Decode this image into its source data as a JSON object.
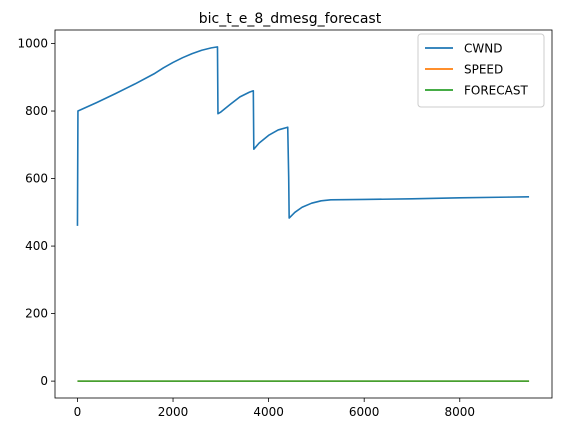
{
  "chart_data": {
    "type": "line",
    "title": "bic_t_e_8_dmesg_forecast",
    "xlabel": "",
    "ylabel": "",
    "xlim": [
      -470,
      9930
    ],
    "ylim": [
      -50,
      1040
    ],
    "x_ticks": [
      0,
      2000,
      4000,
      6000,
      8000
    ],
    "y_ticks": [
      0,
      200,
      400,
      600,
      800,
      1000
    ],
    "grid": false,
    "legend_position": "top-right",
    "series": [
      {
        "name": "CWND",
        "color": "#1f77b4",
        "points": [
          [
            0,
            460
          ],
          [
            10,
            800
          ],
          [
            400,
            825
          ],
          [
            800,
            852
          ],
          [
            1200,
            880
          ],
          [
            1600,
            910
          ],
          [
            1800,
            928
          ],
          [
            2000,
            944
          ],
          [
            2200,
            958
          ],
          [
            2400,
            970
          ],
          [
            2600,
            980
          ],
          [
            2800,
            987
          ],
          [
            2930,
            990
          ],
          [
            2940,
            792
          ],
          [
            3000,
            797
          ],
          [
            3200,
            820
          ],
          [
            3400,
            842
          ],
          [
            3600,
            856
          ],
          [
            3680,
            860
          ],
          [
            3690,
            687
          ],
          [
            3800,
            705
          ],
          [
            4000,
            728
          ],
          [
            4200,
            744
          ],
          [
            4400,
            752
          ],
          [
            4420,
            605
          ],
          [
            4430,
            483
          ],
          [
            4550,
            500
          ],
          [
            4700,
            515
          ],
          [
            4900,
            527
          ],
          [
            5100,
            534
          ],
          [
            5300,
            537
          ],
          [
            6000,
            538
          ],
          [
            7000,
            540
          ],
          [
            8000,
            543
          ],
          [
            9000,
            545
          ],
          [
            9450,
            546
          ]
        ]
      },
      {
        "name": "SPEED",
        "color": "#ff7f0e",
        "points": [
          [
            0,
            0
          ],
          [
            9450,
            0
          ]
        ]
      },
      {
        "name": "FORECAST",
        "color": "#2ca02c",
        "points": [
          [
            0,
            0
          ],
          [
            9450,
            0
          ]
        ]
      }
    ]
  }
}
